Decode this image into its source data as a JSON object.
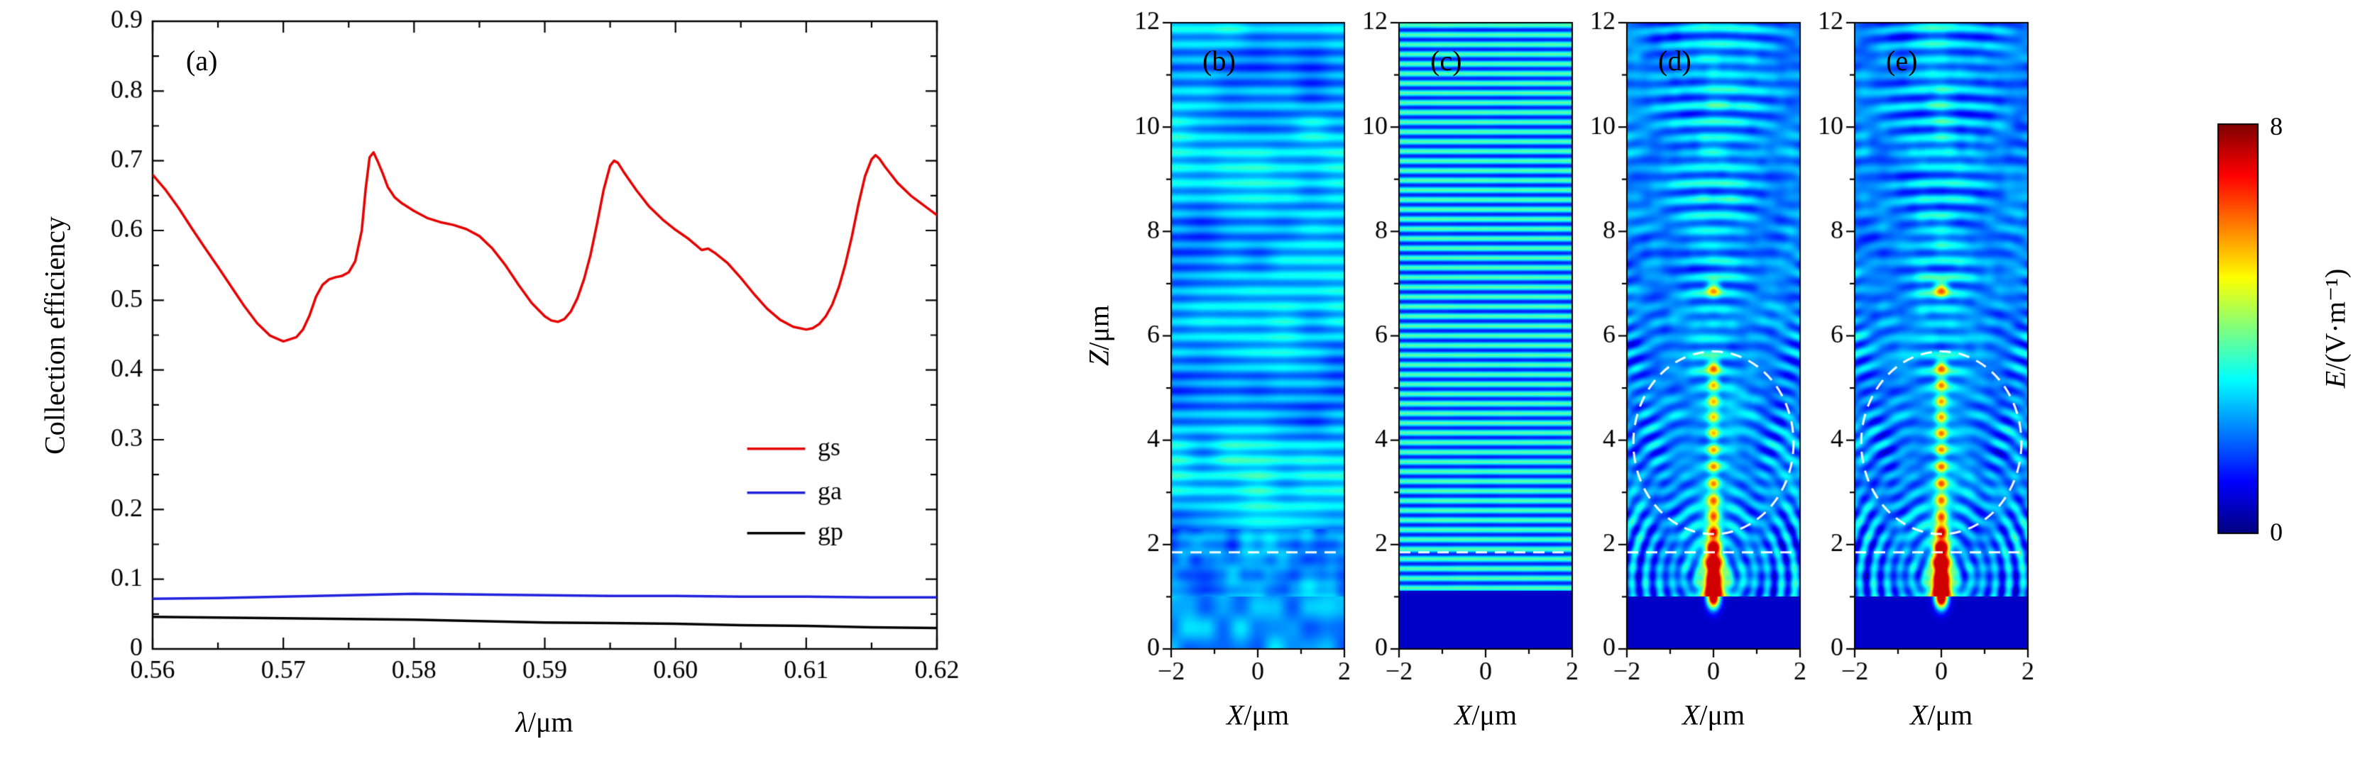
{
  "figure": {
    "background": "#ffffff",
    "panel_count": 6
  },
  "chart_data": [
    {
      "id": "a",
      "type": "line",
      "panel_label": "(a)",
      "xlabel_var": "λ",
      "xlabel_rest": "/μm",
      "ylabel": "Collection efficiency",
      "xlim": [
        0.56,
        0.62
      ],
      "ylim": [
        0,
        0.9
      ],
      "xticks": [
        "0.56",
        "0.57",
        "0.58",
        "0.59",
        "0.60",
        "0.61",
        "0.62"
      ],
      "xtick_values": [
        0.56,
        0.57,
        0.58,
        0.59,
        0.6,
        0.61,
        0.62
      ],
      "yticks": [
        "0",
        "0.1",
        "0.2",
        "0.3",
        "0.4",
        "0.5",
        "0.6",
        "0.7",
        "0.8",
        "0.9"
      ],
      "ytick_values": [
        0,
        0.1,
        0.2,
        0.3,
        0.4,
        0.5,
        0.6,
        0.7,
        0.8,
        0.9
      ],
      "grid": false,
      "legend": {
        "position": "right-center",
        "rows_data_y": [
          0.287,
          0.224,
          0.166
        ]
      },
      "series": [
        {
          "name": "gs",
          "color": "#e50000",
          "x": [
            0.56,
            0.561,
            0.562,
            0.563,
            0.564,
            0.565,
            0.566,
            0.567,
            0.568,
            0.569,
            0.57,
            0.571,
            0.5715,
            0.572,
            0.5725,
            0.573,
            0.5735,
            0.574,
            0.5745,
            0.575,
            0.5755,
            0.576,
            0.5763,
            0.5766,
            0.5769,
            0.5772,
            0.5776,
            0.578,
            0.5785,
            0.579,
            0.58,
            0.581,
            0.582,
            0.583,
            0.584,
            0.585,
            0.586,
            0.587,
            0.588,
            0.589,
            0.59,
            0.5905,
            0.591,
            0.5915,
            0.592,
            0.5925,
            0.593,
            0.5935,
            0.594,
            0.5945,
            0.595,
            0.5953,
            0.5956,
            0.596,
            0.597,
            0.598,
            0.599,
            0.6,
            0.601,
            0.6015,
            0.602,
            0.6025,
            0.603,
            0.604,
            0.605,
            0.606,
            0.607,
            0.608,
            0.609,
            0.61,
            0.6105,
            0.611,
            0.6115,
            0.612,
            0.6125,
            0.613,
            0.6135,
            0.614,
            0.6145,
            0.615,
            0.6153,
            0.6156,
            0.616,
            0.617,
            0.618,
            0.619,
            0.62
          ],
          "y": [
            0.68,
            0.658,
            0.632,
            0.603,
            0.575,
            0.548,
            0.52,
            0.492,
            0.467,
            0.449,
            0.441,
            0.447,
            0.458,
            0.478,
            0.505,
            0.522,
            0.53,
            0.533,
            0.535,
            0.54,
            0.556,
            0.6,
            0.66,
            0.705,
            0.712,
            0.7,
            0.682,
            0.662,
            0.648,
            0.64,
            0.628,
            0.618,
            0.612,
            0.608,
            0.602,
            0.592,
            0.574,
            0.55,
            0.522,
            0.496,
            0.477,
            0.471,
            0.469,
            0.473,
            0.484,
            0.503,
            0.53,
            0.565,
            0.61,
            0.658,
            0.693,
            0.7,
            0.697,
            0.685,
            0.658,
            0.634,
            0.616,
            0.601,
            0.588,
            0.58,
            0.572,
            0.574,
            0.568,
            0.553,
            0.532,
            0.509,
            0.488,
            0.472,
            0.462,
            0.458,
            0.46,
            0.466,
            0.477,
            0.494,
            0.519,
            0.552,
            0.592,
            0.638,
            0.678,
            0.702,
            0.708,
            0.703,
            0.692,
            0.668,
            0.65,
            0.636,
            0.622
          ]
        },
        {
          "name": "ga",
          "color": "#2020dd",
          "x": [
            0.56,
            0.565,
            0.57,
            0.575,
            0.58,
            0.585,
            0.59,
            0.595,
            0.6,
            0.605,
            0.61,
            0.615,
            0.62
          ],
          "y": [
            0.072,
            0.073,
            0.075,
            0.077,
            0.079,
            0.078,
            0.077,
            0.076,
            0.076,
            0.075,
            0.075,
            0.074,
            0.074
          ]
        },
        {
          "name": "gp",
          "color": "#000000",
          "x": [
            0.56,
            0.565,
            0.57,
            0.575,
            0.58,
            0.585,
            0.59,
            0.595,
            0.6,
            0.605,
            0.61,
            0.615,
            0.62
          ],
          "y": [
            0.046,
            0.045,
            0.044,
            0.043,
            0.042,
            0.04,
            0.038,
            0.037,
            0.036,
            0.034,
            0.033,
            0.031,
            0.03
          ]
        }
      ]
    },
    {
      "id": "b",
      "type": "heatmap",
      "panel_label": "(b)",
      "xlabel_var": "X",
      "xlabel_rest": "/μm",
      "ylabel_var": "Z",
      "ylabel_rest": "/μm",
      "xlim": [
        -2,
        2
      ],
      "ylim": [
        0,
        12
      ],
      "xticks": [
        "−2",
        "0",
        "2"
      ],
      "xtick_values": [
        -2,
        0,
        2
      ],
      "yticks": [
        "0",
        "2",
        "4",
        "6",
        "8",
        "10",
        "12"
      ],
      "ytick_values": [
        0,
        2,
        4,
        6,
        8,
        10,
        12
      ],
      "value_range": [
        0,
        8
      ],
      "colormap": "jet",
      "pattern": "weak-standing-waves-with-speckle",
      "stripe_period_um": 0.295,
      "annotations": {
        "dashed_line_z": 1.85
      },
      "description": "Diffuse light-blue field with faint horizontal standing-wave fringes and mottled speckle near the bottom"
    },
    {
      "id": "c",
      "type": "heatmap",
      "panel_label": "(c)",
      "xlabel_var": "X",
      "xlabel_rest": "/μm",
      "ylabel_var": "Z",
      "ylabel_rest": "/μm",
      "xlim": [
        -2,
        2
      ],
      "ylim": [
        0,
        12
      ],
      "xticks": [
        "−2",
        "0",
        "2"
      ],
      "xtick_values": [
        -2,
        0,
        2
      ],
      "yticks": [
        "0",
        "2",
        "4",
        "6",
        "8",
        "10",
        "12"
      ],
      "ytick_values": [
        0,
        2,
        4,
        6,
        8,
        10,
        12
      ],
      "value_range": [
        0,
        8
      ],
      "colormap": "jet",
      "pattern": "uniform-horizontal-stripes",
      "stripe_period_um": 0.186,
      "substrate_z": 1.12,
      "annotations": {
        "dashed_line_z": 1.85
      },
      "description": "Regular horizontal interference stripes above a uniform deep-blue substrate band"
    },
    {
      "id": "d",
      "type": "heatmap",
      "panel_label": "(d)",
      "xlabel_var": "X",
      "xlabel_rest": "/μm",
      "ylabel_var": "Z",
      "ylabel_rest": "/μm",
      "xlim": [
        -2,
        2
      ],
      "ylim": [
        0,
        12
      ],
      "xticks": [
        "−2",
        "0",
        "2"
      ],
      "xtick_values": [
        -2,
        0,
        2
      ],
      "yticks": [
        "0",
        "2",
        "4",
        "6",
        "8",
        "10",
        "12"
      ],
      "ytick_values": [
        0,
        2,
        4,
        6,
        8,
        10,
        12
      ],
      "value_range": [
        0,
        8
      ],
      "colormap": "jet",
      "pattern": "focused-axial-hotspots-with-fan",
      "substrate_z": 1.0,
      "annotations": {
        "dashed_line_z": 1.85,
        "dashed_circle": {
          "cx": 0,
          "cz": 3.95,
          "rx": 1.85,
          "rz": 1.75
        }
      },
      "description": "Bright red/yellow hot spots along the axis near z=1-2.5, green axial spots up to z=6.9, fan-shaped interference above, dashed white circle marking solid-immersion region"
    },
    {
      "id": "e",
      "type": "heatmap",
      "panel_label": "(e)",
      "xlabel_var": "X",
      "xlabel_rest": "/μm",
      "ylabel_var": "Z",
      "ylabel_rest": "/μm",
      "xlim": [
        -2,
        2
      ],
      "ylim": [
        0,
        12
      ],
      "xticks": [
        "−2",
        "0",
        "2"
      ],
      "xtick_values": [
        -2,
        0,
        2
      ],
      "yticks": [
        "0",
        "2",
        "4",
        "6",
        "8",
        "10",
        "12"
      ],
      "ytick_values": [
        0,
        2,
        4,
        6,
        8,
        10,
        12
      ],
      "value_range": [
        0,
        8
      ],
      "colormap": "jet",
      "pattern": "focused-axial-hotspots-with-fan",
      "substrate_z": 1.0,
      "annotations": {
        "dashed_line_z": 1.85,
        "dashed_circle": {
          "cx": 0,
          "cz": 3.95,
          "rx": 1.85,
          "rz": 1.75
        }
      },
      "description": "Same as (d) with slightly stronger focal hot spots and interference contrast"
    },
    {
      "id": "colorbar",
      "type": "colorbar",
      "label_var": "E",
      "label_rest": "/(V·m⁻¹)",
      "ticks": [
        "0",
        "8"
      ],
      "range": [
        0,
        8
      ],
      "colormap": "jet",
      "orientation": "vertical"
    }
  ]
}
